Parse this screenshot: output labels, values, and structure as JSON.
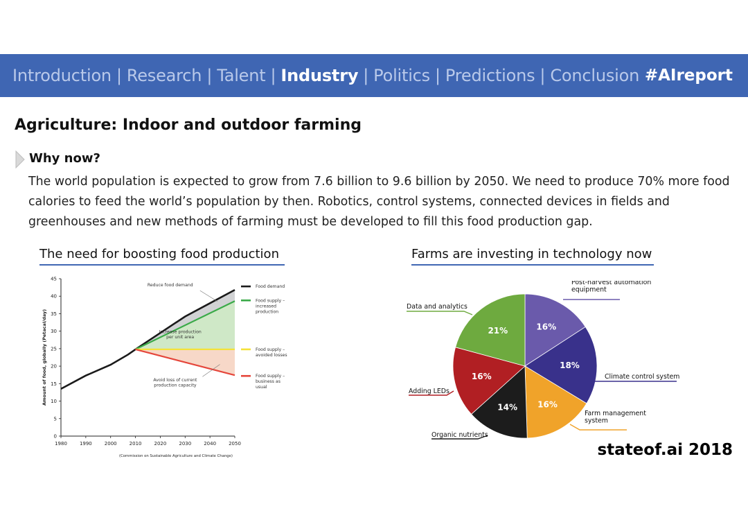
{
  "nav": {
    "items": [
      "Introduction",
      "Research",
      "Talent",
      "Industry",
      "Politics",
      "Predictions",
      "Conclusion"
    ],
    "active_index": 3,
    "separator": "|",
    "hashtag": "#AIreport"
  },
  "page": {
    "title": "Agriculture: Indoor and outdoor farming",
    "why_heading": "Why now?",
    "body": "The world population is expected to grow from 7.6 billion to 9.6 billion by 2050. We need to produce 70% more food calories to feed the world’s population by then. Robotics, control systems, connected devices in fields and greenhouses and new methods of farming must be developed to fill this food production gap.",
    "line_section_title": "The need for boosting food production",
    "pie_section_title": "Farms are investing in technology now",
    "brand": "stateof.ai 2018"
  },
  "colors": {
    "nav_bg": "#3f66b3",
    "food_demand": "#1a1a1a",
    "food_supply_increased": "#3aaa48",
    "food_supply_avoided": "#f4e23a",
    "food_supply_usual": "#e5463b"
  },
  "chart_data": [
    {
      "type": "line",
      "ylabel": "Amount of food, globally (Petacal/day)",
      "xlabel": "",
      "x": [
        1980,
        1990,
        2000,
        2010,
        2020,
        2030,
        2040,
        2050
      ],
      "xticks": [
        "1980",
        "1990",
        "2000",
        "2010",
        "2020",
        "2030",
        "2040",
        "2050"
      ],
      "yticks": [
        "0",
        "5",
        "10",
        "15",
        "20",
        "25",
        "30",
        "35",
        "40",
        "45"
      ],
      "ylim": [
        0,
        45
      ],
      "xlim": [
        1980,
        2050
      ],
      "grid": false,
      "legend_position": "right",
      "source_note": "(Commission on Sustainable Agriculture and Climate Change)",
      "series": [
        {
          "name": "Food demand",
          "color": "#1a1a1a",
          "points": [
            [
              1980,
              13.5
            ],
            [
              1990,
              17.3
            ],
            [
              2000,
              20.4
            ],
            [
              2007,
              23.3
            ],
            [
              2010,
              24.8
            ],
            [
              2020,
              29.5
            ],
            [
              2030,
              34.2
            ],
            [
              2040,
              38.0
            ],
            [
              2050,
              41.8
            ]
          ]
        },
        {
          "name": "Food supply – increased production",
          "color": "#3aaa48",
          "points": [
            [
              2010,
              24.8
            ],
            [
              2050,
              38.6
            ]
          ]
        },
        {
          "name": "Food supply – avoided losses",
          "color": "#f4e23a",
          "points": [
            [
              2010,
              24.8
            ],
            [
              2050,
              24.8
            ]
          ]
        },
        {
          "name": "Food supply – business as usual",
          "color": "#e5463b",
          "points": [
            [
              2010,
              24.8
            ],
            [
              2050,
              17.4
            ]
          ]
        }
      ],
      "annotations": [
        {
          "text": "Reduce food demand",
          "lines": [
            "Reduce food demand"
          ],
          "x": 2024,
          "y": 42.8
        },
        {
          "text": "Increase production per unit area",
          "lines": [
            "Increase production",
            "per unit area"
          ],
          "x": 2028,
          "y": 29.4
        },
        {
          "text": "Avoid loss of current production capacity",
          "lines": [
            "Avoid loss of current",
            "production capacity"
          ],
          "x": 2026,
          "y": 15.7
        }
      ],
      "legend": [
        {
          "lines": [
            "Food demand"
          ],
          "color": "#1a1a1a",
          "y": 42.8
        },
        {
          "lines": [
            "Food supply –",
            "increased",
            "production"
          ],
          "color": "#3aaa48",
          "y": 38.8
        },
        {
          "lines": [
            "Food supply –",
            "avoided losses"
          ],
          "color": "#f4e23a",
          "y": 24.8
        },
        {
          "lines": [
            "Food supply –",
            "business as",
            "usual"
          ],
          "color": "#e5463b",
          "y": 17.2
        }
      ]
    },
    {
      "type": "pie",
      "slices": [
        {
          "label": "Post-harvest automation equipment",
          "label_lines": [
            "Post-harvest automation",
            "equipment"
          ],
          "value": 16,
          "display": "16%",
          "color": "#6a5aab"
        },
        {
          "label": "Climate control system",
          "label_lines": [
            "Climate control system"
          ],
          "value": 18,
          "display": "18%",
          "color": "#39318b"
        },
        {
          "label": "Farm management system",
          "label_lines": [
            "Farm management",
            "system"
          ],
          "value": 16,
          "display": "16%",
          "color": "#f0a32a"
        },
        {
          "label": "Organic nutrients",
          "label_lines": [
            "Organic nutrients"
          ],
          "value": 14,
          "display": "14%",
          "color": "#1c1c1c"
        },
        {
          "label": "Adding LEDs",
          "label_lines": [
            "Adding LEDs"
          ],
          "value": 16,
          "display": "16%",
          "color": "#b11f23"
        },
        {
          "label": "Data and analytics",
          "label_lines": [
            "Data and analytics"
          ],
          "value": 21,
          "display": "21%",
          "color": "#6eaa3f"
        }
      ]
    }
  ]
}
